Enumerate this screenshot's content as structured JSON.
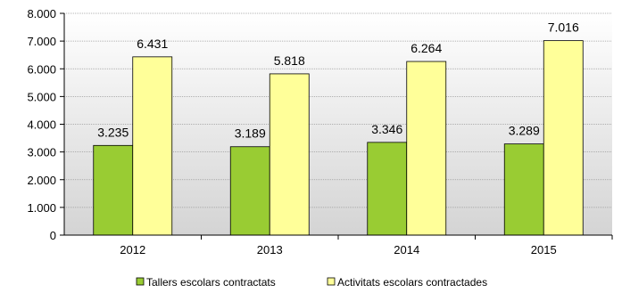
{
  "chart_data": {
    "type": "bar",
    "categories": [
      "2012",
      "2013",
      "2014",
      "2015"
    ],
    "series": [
      {
        "name": "Tallers escolars contractats",
        "values": [
          3235,
          3189,
          3346,
          3289
        ],
        "labels": [
          "3.235",
          "3.189",
          "3.346",
          "3.289"
        ],
        "color": "#99cc33"
      },
      {
        "name": "Activitats escolars contractades",
        "values": [
          6431,
          5818,
          6264,
          7016
        ],
        "labels": [
          "6.431",
          "5.818",
          "6.264",
          "7.016"
        ],
        "color": "#ffff99"
      }
    ],
    "y_ticks": [
      0,
      1000,
      2000,
      3000,
      4000,
      5000,
      6000,
      7000,
      8000
    ],
    "y_tick_labels": [
      "0",
      "1.000",
      "2.000",
      "3.000",
      "4.000",
      "5.000",
      "6.000",
      "7.000",
      "8.000"
    ],
    "ylim": [
      0,
      8000
    ],
    "grid": true,
    "legend_position": "bottom",
    "colors": {
      "plot_top": "#ffffff",
      "plot_bottom": "#d4d4d4",
      "grid": "#999999",
      "bar_stroke": "#000000"
    }
  }
}
